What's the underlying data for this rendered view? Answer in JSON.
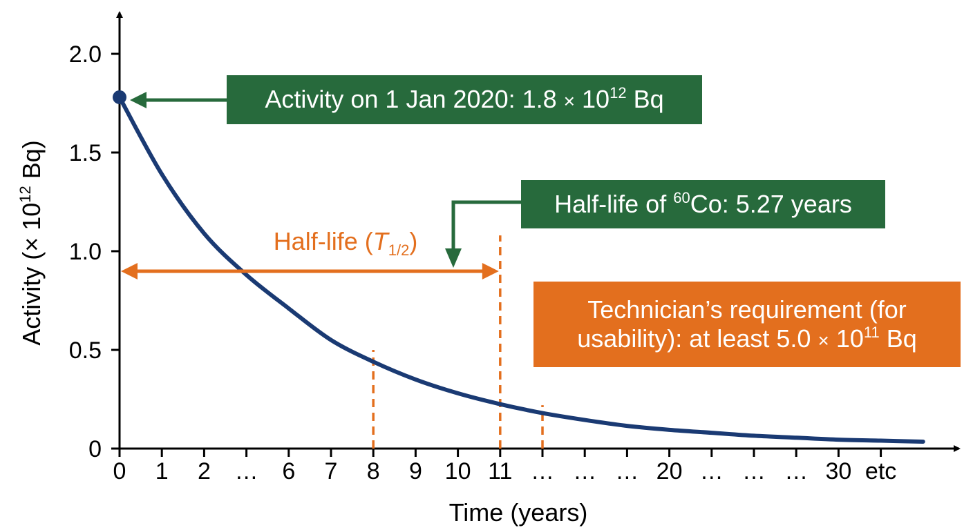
{
  "colors": {
    "curve": "#1a3a73",
    "axis": "#000000",
    "green_box": "#276a3c",
    "orange": "#e36f1e",
    "orange_text": "#e36f1e",
    "text": "#000000"
  },
  "chart_data": {
    "type": "line",
    "xlabel": "Time (years)",
    "ylabel_parts": {
      "pre": "Activity (× 10",
      "sup": "12",
      "post": " Bq)"
    },
    "yticks": [
      "0",
      "0.5",
      "1.0",
      "1.5",
      "2.0"
    ],
    "ytick_values": [
      0,
      0.5,
      1.0,
      1.5,
      2.0
    ],
    "ylim": [
      0,
      2.0
    ],
    "xtick_labels": [
      "0",
      "1",
      "2",
      "…",
      "6",
      "7",
      "8",
      "9",
      "10",
      "11",
      "…",
      "…",
      "…",
      "20",
      "…",
      "…",
      "…",
      "30",
      "etc"
    ],
    "series": [
      {
        "x": [
          0,
          1,
          2,
          3,
          4,
          5,
          6,
          7,
          8,
          9,
          10,
          11,
          12,
          13,
          14,
          15,
          16,
          17,
          18,
          19
        ],
        "y": [
          1.78,
          1.39,
          1.09,
          0.88,
          0.71,
          0.55,
          0.44,
          0.35,
          0.28,
          0.225,
          0.18,
          0.145,
          0.115,
          0.095,
          0.08,
          0.065,
          0.055,
          0.045,
          0.04,
          0.035
        ]
      }
    ],
    "start_point": {
      "x": 0,
      "y": 1.78
    },
    "dashed_markers": [
      {
        "x_index": 6,
        "y": 0.5
      },
      {
        "x_index": 9,
        "y": 1.08
      },
      {
        "x_index": 10,
        "y": 0.22
      }
    ],
    "grid": false
  },
  "annotations": {
    "activity": {
      "pre": "Activity on 1 Jan 2020: 1.8",
      "times": "×",
      "base": "10",
      "sup": "12",
      "post": " Bq"
    },
    "halflife_co": {
      "pre": "Half-life of ",
      "sup": "60",
      "post": "Co: 5.27 years"
    },
    "halflife_label": {
      "pre": "Half-life (",
      "t": "T",
      "sub": "1/2",
      "post": ")"
    },
    "technician": {
      "line1": "Technician’s requirement (for",
      "line2_pre": "usability): at least 5.0",
      "times": "×",
      "base": "10",
      "sup": "11",
      "post": " Bq"
    }
  }
}
